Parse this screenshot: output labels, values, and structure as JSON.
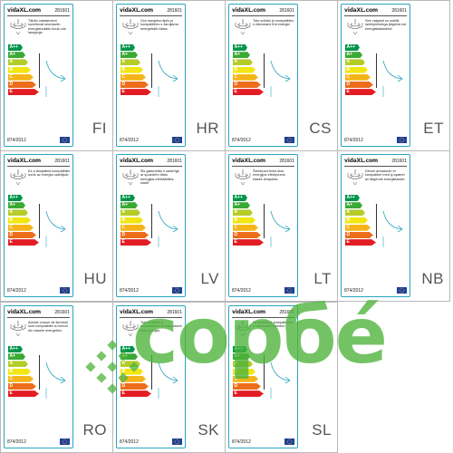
{
  "brand_label": "vidaXL.com",
  "sku": "281601",
  "regulation": "874/2012",
  "energy_classes": [
    "A++",
    "A+",
    "A",
    "B",
    "C",
    "D",
    "E"
  ],
  "class_colors": [
    "#00954b",
    "#3aa935",
    "#b4cc28",
    "#f2e611",
    "#f5b417",
    "#ec6d1c",
    "#e31d24"
  ],
  "labels": [
    {
      "lang": "FI",
      "desc": "Tähän valaisimeen soveltuvat seuraaviin energialuokkiin kuulu-via lamppuja:"
    },
    {
      "lang": "HR",
      "desc": "Ovo rasvjetno tijelo je kompatibilno s žaruljama energetskih klasa:"
    },
    {
      "lang": "CS",
      "desc": "Toto svítidlo je kompatibilní s žárovkami tříd energie:"
    },
    {
      "lang": "ET",
      "desc": "See valgusti on sobilik lambipirnidega järgmist est energiaklassidest:"
    },
    {
      "lang": "HU",
      "desc": "Ez a lámpatest kompatibilis izzók az energia osztályok:"
    },
    {
      "lang": "LV",
      "desc": "Šis gaismeklis ir saderīgs ar spuldzēm šādu energijas efektivitātes klasē:"
    },
    {
      "lang": "LT",
      "desc": "Šviestuvui tinka šios energijos efektyvumo klasės lemputės:"
    },
    {
      "lang": "NB",
      "desc": "Denne armaturen er kompatibel med ly-spærer av følgende energiklasser:"
    },
    {
      "lang": "RO",
      "desc": "Aceste corpuri de iluminat sunt compatibile cu becuri din clasele energetice:"
    },
    {
      "lang": "SK",
      "desc": "Toto svietidlo je kompatibilné so žiarovkami tried energie:"
    },
    {
      "lang": "SL",
      "desc": "Ta svetilka je kompatibilna z žarnicami razredov:"
    }
  ],
  "watermark": {
    "text": "сорбé",
    "color": "#4cb33a"
  }
}
